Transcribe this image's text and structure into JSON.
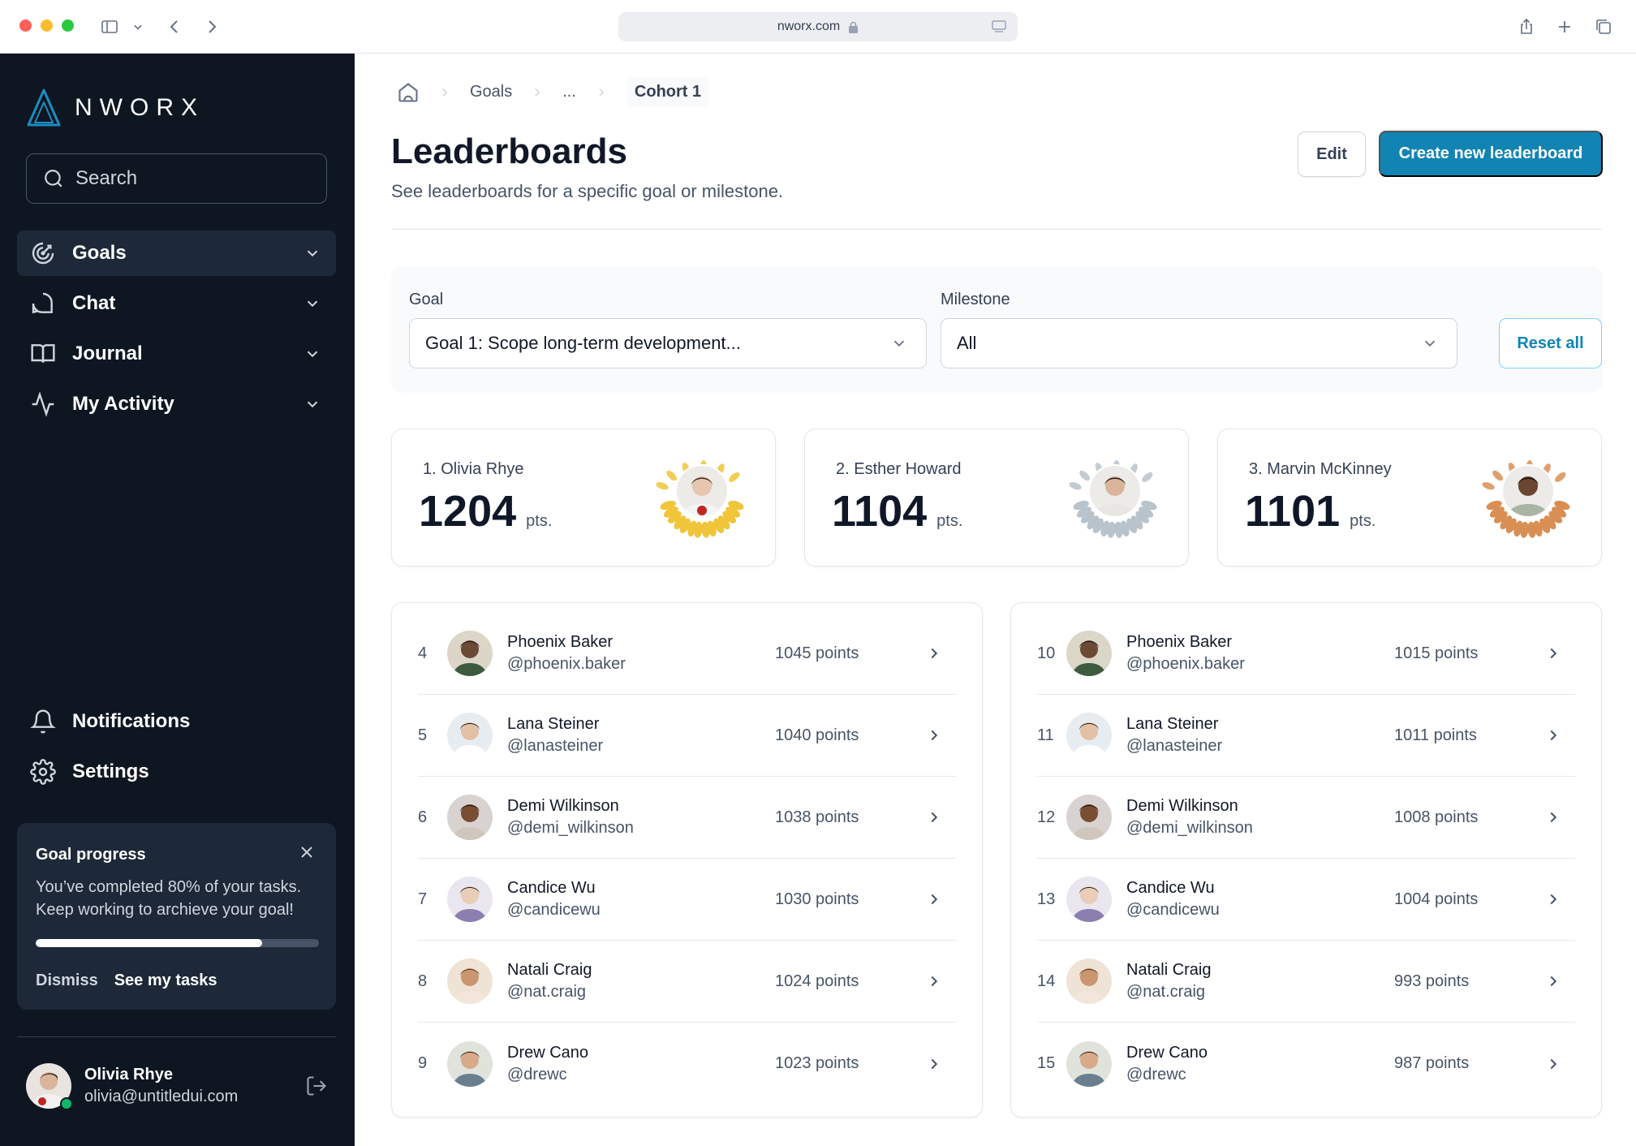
{
  "browser": {
    "url": "nworx.com"
  },
  "brand": {
    "name": "NWORX"
  },
  "sidebar": {
    "search_placeholder": "Search",
    "nav": [
      {
        "label": "Goals",
        "icon": "target-icon",
        "active": true
      },
      {
        "label": "Chat",
        "icon": "chat-bubble-icon",
        "active": false
      },
      {
        "label": "Journal",
        "icon": "book-open-icon",
        "active": false
      },
      {
        "label": "My Activity",
        "icon": "activity-icon",
        "active": false
      }
    ],
    "bottom_nav": [
      {
        "label": "Notifications",
        "icon": "bell-icon"
      },
      {
        "label": "Settings",
        "icon": "gear-icon"
      }
    ],
    "progress": {
      "title": "Goal progress",
      "text": "You’ve completed 80% of your tasks. Keep working to archieve your goal!",
      "percent": 80,
      "dismiss": "Dismiss",
      "see_tasks": "See my tasks"
    },
    "user": {
      "name": "Olivia Rhye",
      "email": "olivia@untitledui.com"
    }
  },
  "breadcrumb": {
    "items": [
      "Goals",
      "...",
      "Cohort 1"
    ]
  },
  "header": {
    "title": "Leaderboards",
    "subtitle": "See leaderboards for a specific goal or milestone.",
    "edit_label": "Edit",
    "create_label": "Create new leaderboard"
  },
  "filters": {
    "goal_label": "Goal",
    "goal_value": "Goal 1: Scope long-term development...",
    "milestone_label": "Milestone",
    "milestone_value": "All",
    "reset_label": "Reset all"
  },
  "podium": [
    {
      "rank_name": "1. Olivia Rhye",
      "points": "1204",
      "unit": "pts.",
      "laurel_color": "#f0c53a"
    },
    {
      "rank_name": "2. Esther Howard",
      "points": "1104",
      "unit": "pts.",
      "laurel_color": "#b9c3cc"
    },
    {
      "rank_name": "3. Marvin McKinney",
      "points": "1101",
      "unit": "pts.",
      "laurel_color": "#d98f54"
    }
  ],
  "list_left": [
    {
      "rank": "4",
      "name": "Phoenix Baker",
      "handle": "@phoenix.baker",
      "points": "1045 points"
    },
    {
      "rank": "5",
      "name": "Lana Steiner",
      "handle": "@lanasteiner",
      "points": "1040 points"
    },
    {
      "rank": "6",
      "name": "Demi Wilkinson",
      "handle": "@demi_wilkinson",
      "points": "1038 points"
    },
    {
      "rank": "7",
      "name": "Candice Wu",
      "handle": "@candicewu",
      "points": "1030 points"
    },
    {
      "rank": "8",
      "name": "Natali Craig",
      "handle": "@nat.craig",
      "points": "1024 points"
    },
    {
      "rank": "9",
      "name": "Drew Cano",
      "handle": "@drewc",
      "points": "1023 points"
    }
  ],
  "list_right": [
    {
      "rank": "10",
      "name": "Phoenix Baker",
      "handle": "@phoenix.baker",
      "points": "1015 points"
    },
    {
      "rank": "11",
      "name": "Lana Steiner",
      "handle": "@lanasteiner",
      "points": "1011 points"
    },
    {
      "rank": "12",
      "name": "Demi Wilkinson",
      "handle": "@demi_wilkinson",
      "points": "1008 points"
    },
    {
      "rank": "13",
      "name": "Candice Wu",
      "handle": "@candicewu",
      "points": "1004 points"
    },
    {
      "rank": "14",
      "name": "Natali Craig",
      "handle": "@nat.craig",
      "points": "993 points"
    },
    {
      "rank": "15",
      "name": "Drew Cano",
      "handle": "@drewc",
      "points": "987 points"
    }
  ],
  "colors": {
    "sidebar_bg": "#0e1621",
    "accent": "#1184b3",
    "online": "#12b76a"
  }
}
